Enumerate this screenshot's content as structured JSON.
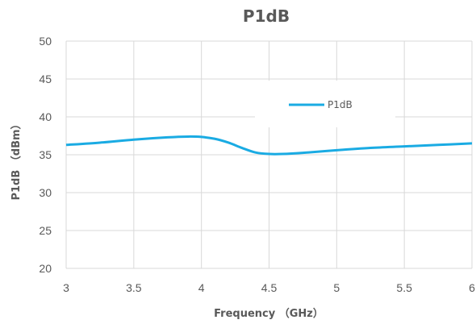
{
  "chart_data": {
    "type": "line",
    "title": "P1dB",
    "xlabel": "Frequency （GHz）",
    "ylabel": "P1dB （dBm）",
    "xlim": [
      3,
      6
    ],
    "ylim": [
      20,
      50
    ],
    "x_ticks": [
      "3",
      "3.5",
      "4",
      "4.5",
      "5",
      "5.5",
      "6"
    ],
    "y_ticks": [
      "20",
      "25",
      "30",
      "35",
      "40",
      "45",
      "50"
    ],
    "grid": true,
    "legend": {
      "position": "top-center",
      "entries": [
        "P1dB"
      ]
    },
    "series": [
      {
        "name": "P1dB",
        "color": "#1aabe3",
        "x": [
          3.0,
          3.25,
          3.5,
          3.75,
          3.9,
          4.0,
          4.1,
          4.2,
          4.3,
          4.4,
          4.5,
          4.6,
          4.75,
          5.0,
          5.25,
          5.5,
          5.75,
          6.0
        ],
        "y": [
          36.3,
          36.6,
          37.0,
          37.3,
          37.4,
          37.35,
          37.1,
          36.6,
          35.9,
          35.3,
          35.1,
          35.1,
          35.25,
          35.6,
          35.9,
          36.1,
          36.3,
          36.5
        ]
      }
    ]
  }
}
